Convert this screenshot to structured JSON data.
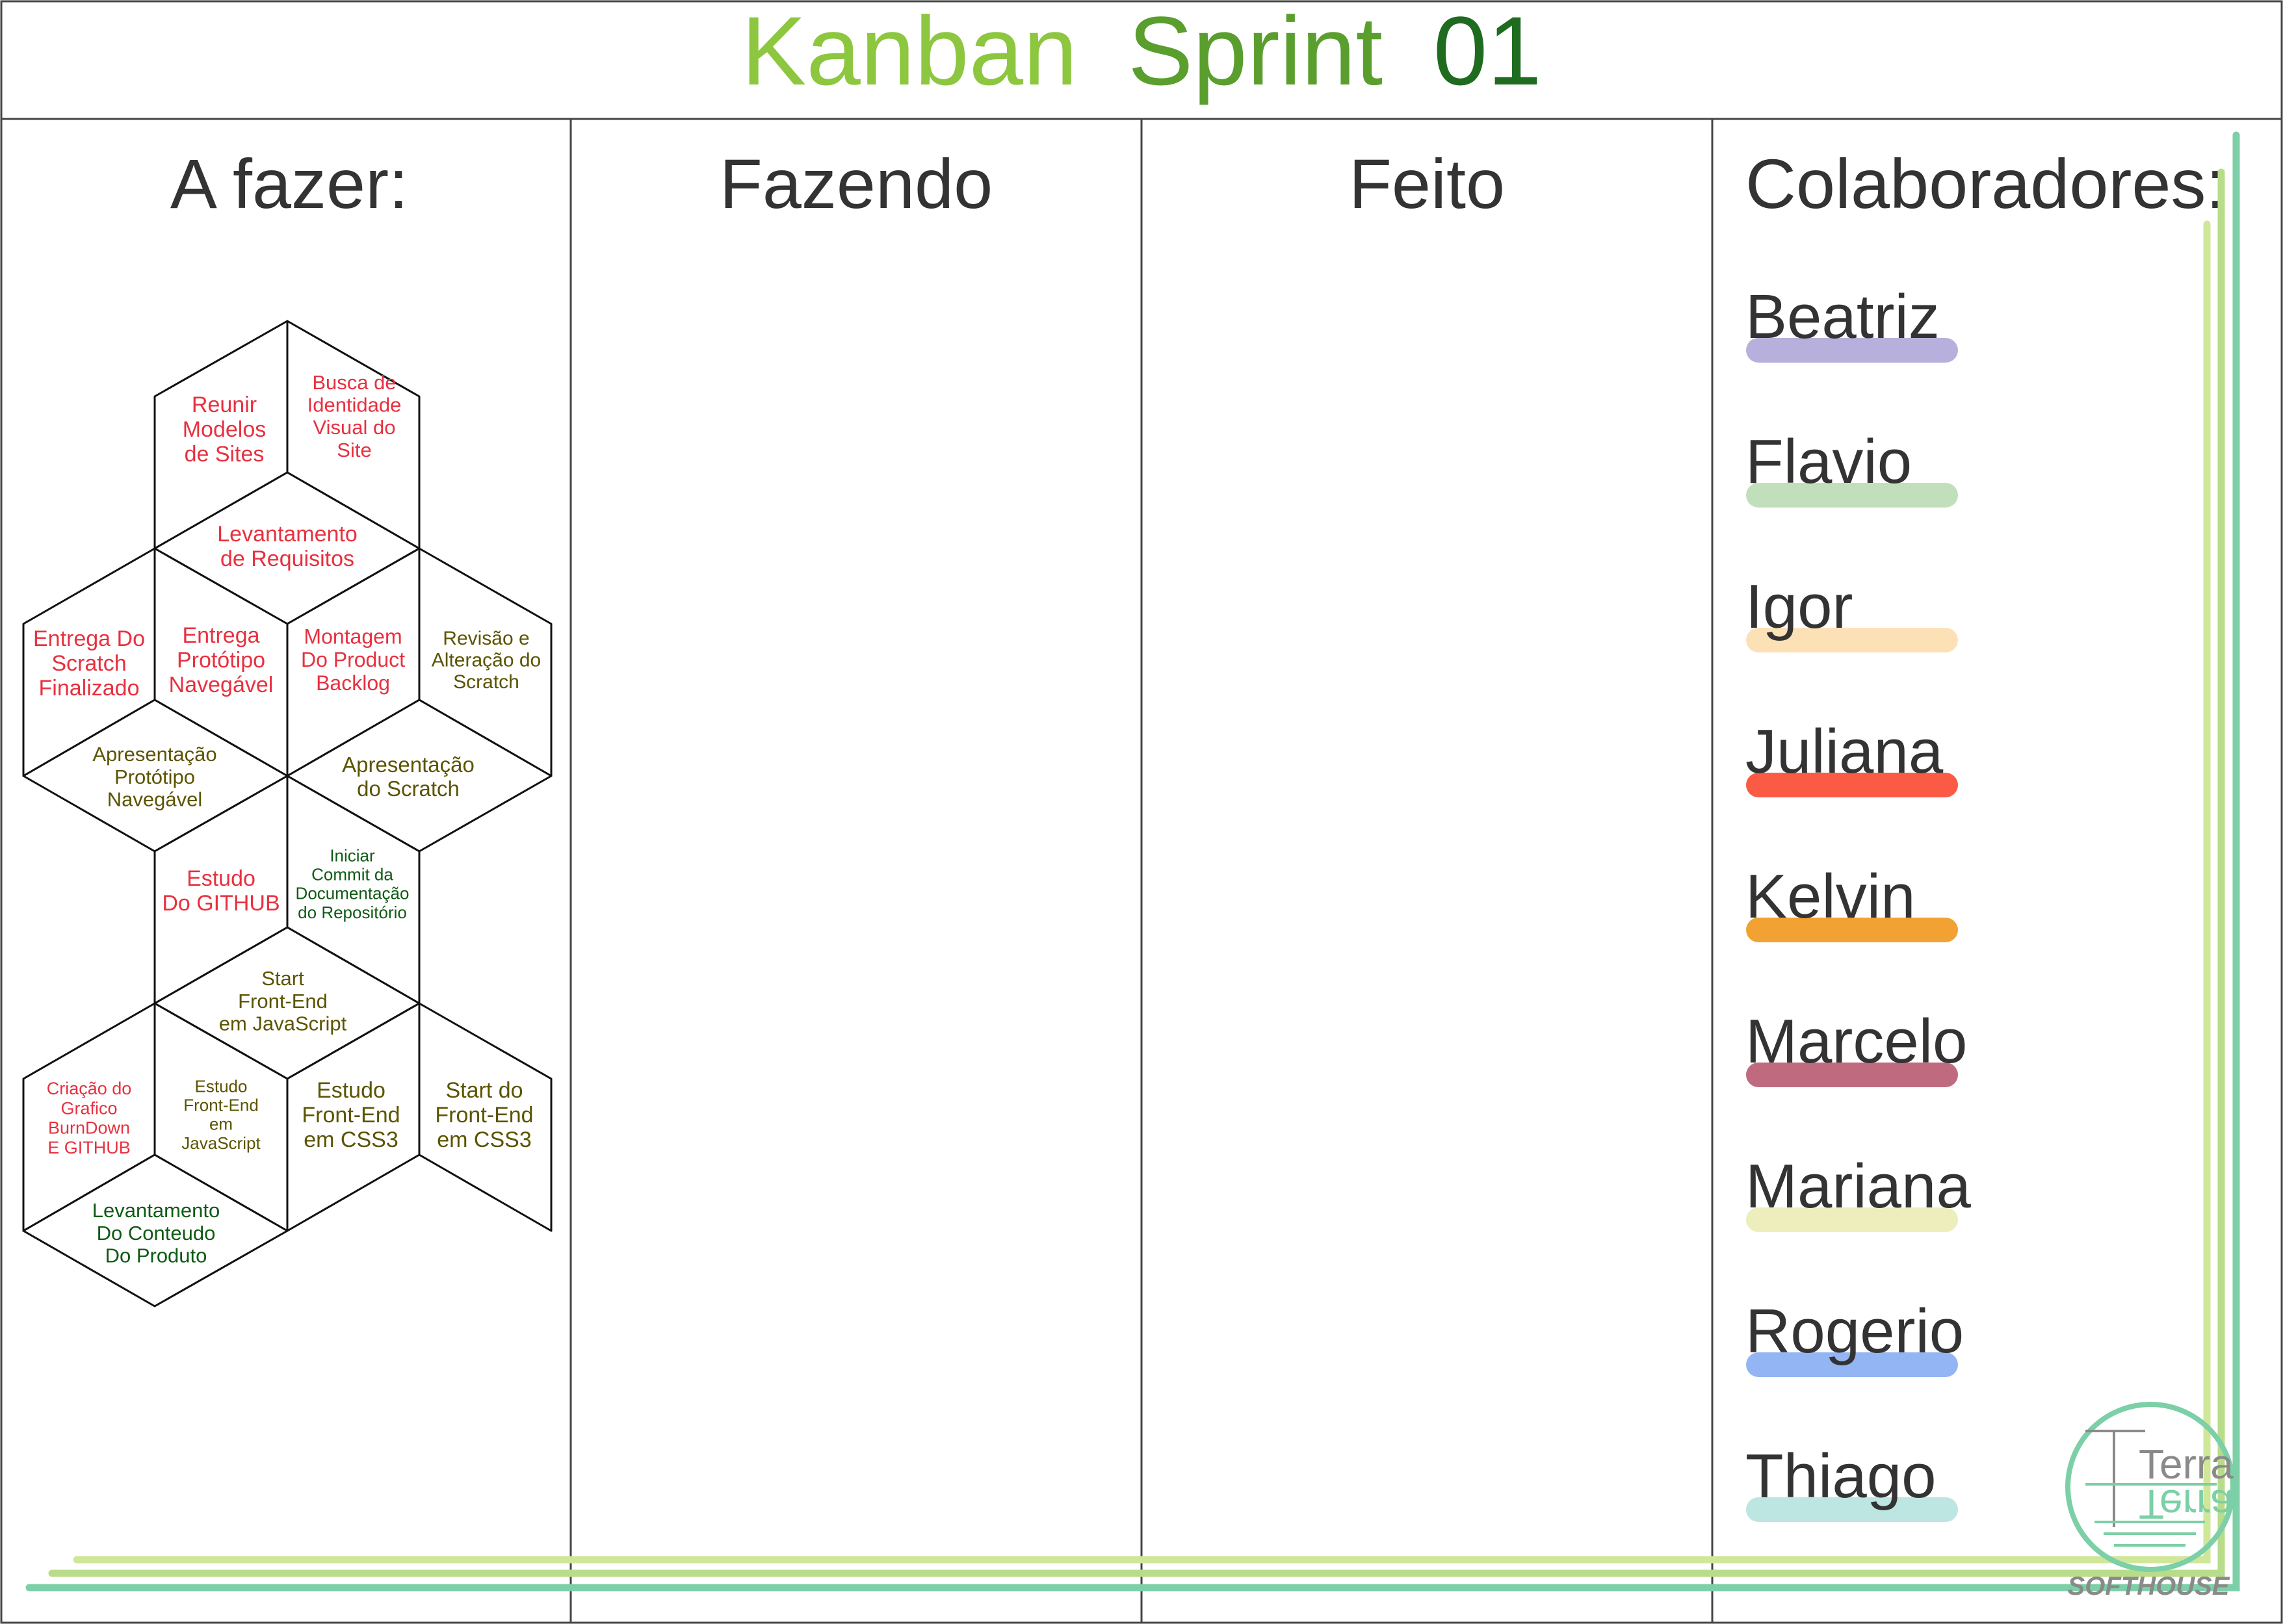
{
  "title": {
    "words": [
      {
        "text": "Kanban",
        "color": "#8dc63f"
      },
      {
        "text": "Sprint",
        "color": "#5a9e2e"
      },
      {
        "text": "01",
        "color": "#1f6b1f"
      }
    ]
  },
  "columns": [
    {
      "label": "A fazer:"
    },
    {
      "label": "Fazendo"
    },
    {
      "label": "Feito"
    },
    {
      "label": "Colaboradores:"
    }
  ],
  "task_colors": {
    "red": "#e8303f",
    "olive": "#5b5400",
    "green": "#0f5a14"
  },
  "tasks": [
    {
      "text": [
        "Reunir",
        "Modelos",
        "de Sites"
      ],
      "color": "red"
    },
    {
      "text": [
        "Busca de",
        "Identidade",
        "Visual do",
        "Site"
      ],
      "color": "red"
    },
    {
      "text": [
        "Levantamento",
        "de Requisitos"
      ],
      "color": "red"
    },
    {
      "text": [
        "Entrega Do",
        "Scratch",
        "Finalizado"
      ],
      "color": "red"
    },
    {
      "text": [
        "Entrega",
        "Protótipo",
        "Navegável"
      ],
      "color": "red"
    },
    {
      "text": [
        "Montagem",
        "Do  Product",
        "Backlog"
      ],
      "color": "red"
    },
    {
      "text": [
        "Revisão e",
        "Alteração do",
        "Scratch"
      ],
      "color": "olive"
    },
    {
      "text": [
        "Apresentação",
        "Protótipo",
        "Navegável"
      ],
      "color": "olive"
    },
    {
      "text": [
        "Apresentação",
        "do Scratch"
      ],
      "color": "olive"
    },
    {
      "text": [
        "Estudo",
        "Do GITHUB"
      ],
      "color": "red"
    },
    {
      "text": [
        "Iniciar",
        "Commit da",
        "Documentação",
        "do Repositório"
      ],
      "color": "green"
    },
    {
      "text": [
        "Start",
        "Front-End",
        "em JavaScript"
      ],
      "color": "olive"
    },
    {
      "text": [
        "Criação do",
        "Grafico",
        "BurnDown",
        "E GITHUB"
      ],
      "color": "red"
    },
    {
      "text": [
        "Estudo",
        "Front-End",
        "em",
        "JavaScript"
      ],
      "color": "olive"
    },
    {
      "text": [
        "Estudo",
        "Front-End",
        "em CSS3"
      ],
      "color": "olive"
    },
    {
      "text": [
        "Start do",
        "Front-End",
        "em CSS3"
      ],
      "color": "olive"
    },
    {
      "text": [
        "Levantamento",
        "Do Conteudo",
        "Do Produto"
      ],
      "color": "green"
    }
  ],
  "collaborators": [
    {
      "name": "Beatriz",
      "color": "#b8b0dc"
    },
    {
      "name": "Flavio",
      "color": "#c2dfbb"
    },
    {
      "name": "Igor",
      "color": "#fde1b6"
    },
    {
      "name": "Juliana",
      "color": "#fb5b45"
    },
    {
      "name": "Kelvin",
      "color": "#f2a232"
    },
    {
      "name": "Marcelo",
      "color": "#c06a80"
    },
    {
      "name": "Mariana",
      "color": "#eeeebd"
    },
    {
      "name": "Rogerio",
      "color": "#93b5f3"
    },
    {
      "name": "Thiago",
      "color": "#bde5e2"
    }
  ],
  "logo": {
    "brand": "Terra",
    "tagline": "SOFTHOUSE",
    "icon": "terra-logo-icon",
    "color": "#7ccfa6"
  },
  "decoration": {
    "stripe_light": "#d0e79a",
    "stripe_mid": "#b9dc8a",
    "stripe_dark": "#7ccfa6"
  }
}
